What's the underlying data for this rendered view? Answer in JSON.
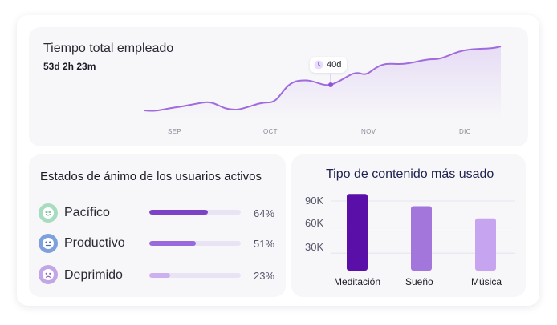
{
  "time_panel": {
    "title": "Tiempo total empleado",
    "total": "53d 2h 23m",
    "badge": {
      "icon": "clock-icon",
      "value": "40d"
    },
    "months": [
      "SEP",
      "OCT",
      "NOV",
      "DIC"
    ],
    "line_color": "#9f6bdd"
  },
  "mood_panel": {
    "title": "Estados de ánimo de los usuarios activos",
    "moods": [
      {
        "label": "Pacífico",
        "percent": "64%",
        "fraction": 0.64,
        "icon": "calm-face-icon",
        "icon_color": "#a8dcc0",
        "bar_color": "#7c42c8"
      },
      {
        "label": "Productivo",
        "percent": "51%",
        "fraction": 0.51,
        "icon": "focused-face-icon",
        "icon_color": "#7ea1dc",
        "bar_color": "#9a68dd"
      },
      {
        "label": "Deprimido",
        "percent": "23%",
        "fraction": 0.23,
        "icon": "sad-face-icon",
        "icon_color": "#c3a6e6",
        "bar_color": "#cdb0ef"
      }
    ]
  },
  "content_panel": {
    "title": "Tipo de contenido más usado"
  },
  "chart_data": {
    "type": "bar",
    "title": "Tipo de contenido más usado",
    "categories": [
      "Meditación",
      "Sueño",
      "Música"
    ],
    "values": [
      98000,
      84000,
      70000
    ],
    "y_ticks": [
      "90K",
      "60K",
      "30K"
    ],
    "ylim": [
      10000,
      100000
    ],
    "grid": true,
    "colors": [
      "#5a0fa8",
      "#a376dc",
      "#c7a4f0"
    ]
  }
}
